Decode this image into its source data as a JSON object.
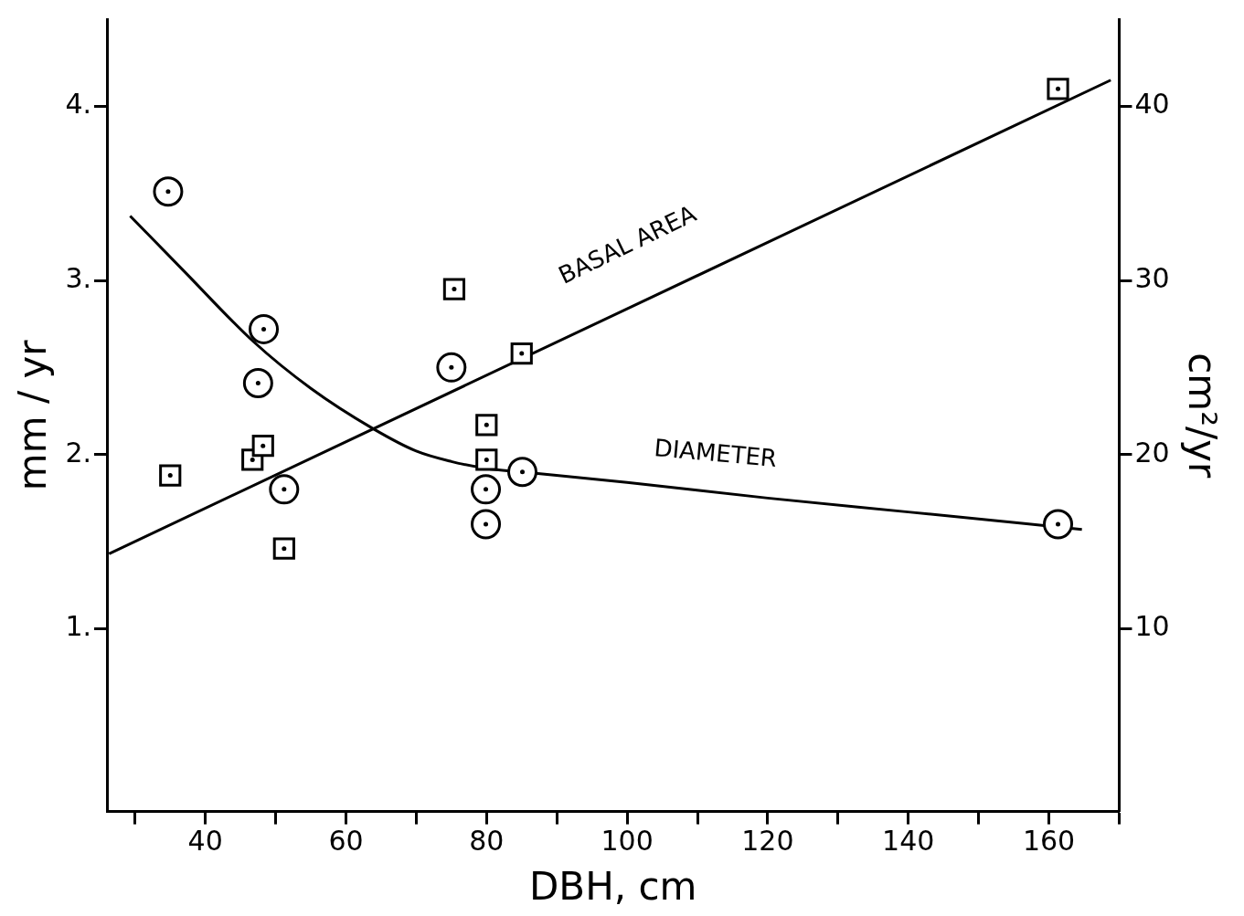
{
  "chart_data": {
    "type": "scatter",
    "xlabel": "DBH, cm",
    "ylabel": "mm / yr",
    "y2label": "cm²/yr",
    "xlim": [
      26,
      170
    ],
    "xticks": [
      {
        "value": 30,
        "label": null
      },
      40,
      {
        "value": 50,
        "label": null
      },
      60,
      {
        "value": 70,
        "label": null
      },
      80,
      {
        "value": 90,
        "label": null
      },
      100,
      {
        "value": 110,
        "label": null
      },
      120,
      {
        "value": 130,
        "label": null
      },
      140,
      {
        "value": 150,
        "label": null
      },
      160,
      {
        "value": 170,
        "label": null
      }
    ],
    "ylim": [
      -0.05,
      4.5
    ],
    "yticks": [
      {
        "value": 1,
        "label": "1."
      },
      {
        "value": 2,
        "label": "2."
      },
      {
        "value": 3,
        "label": "3."
      },
      {
        "value": 4,
        "label": "4."
      }
    ],
    "y2lim": [
      -0.5,
      45
    ],
    "y2ticks": [
      10,
      20,
      30,
      40
    ],
    "grid": false,
    "legend": false,
    "series": [
      {
        "marker": "circle",
        "color": "#000000",
        "x": [
          34.7,
          48.3,
          47.5,
          51.2,
          75,
          79.9,
          79.9,
          85.1,
          161.3
        ],
        "values": [
          3.51,
          2.72,
          2.41,
          1.8,
          2.5,
          1.8,
          1.6,
          1.9,
          1.6
        ]
      },
      {
        "marker": "square",
        "axis": "y2",
        "color": "#000000",
        "x": [
          35,
          46.7,
          48.2,
          51.2,
          75.4,
          85,
          80,
          80,
          161.3
        ],
        "values": [
          18.8,
          19.7,
          20.5,
          14.6,
          29.5,
          25.8,
          21.7,
          19.7,
          41
        ]
      },
      {
        "type": "line",
        "marker": "none",
        "line_style": "solid",
        "color": "#000000",
        "x": [
          29.3,
          36.8,
          46.8,
          55,
          63.8,
          70,
          75,
          80,
          85,
          100,
          120,
          140,
          164.7
        ],
        "values": [
          3.37,
          3.06,
          2.65,
          2.38,
          2.15,
          2.02,
          1.96,
          1.92,
          1.9,
          1.84,
          1.75,
          1.67,
          1.57
        ]
      },
      {
        "type": "line",
        "marker": "none",
        "line_style": "solid",
        "axis": "y2",
        "color": "#000000",
        "x": [
          26.3,
          168.8
        ],
        "values": [
          14.3,
          41.5
        ]
      }
    ],
    "annotations": [
      "BASAL AREA",
      "DIAMETER"
    ]
  }
}
